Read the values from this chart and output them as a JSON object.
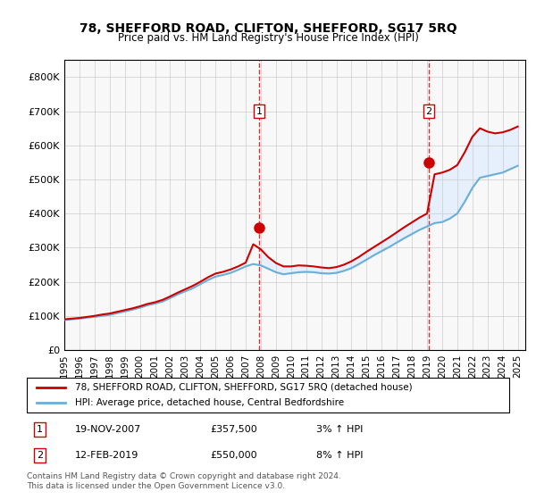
{
  "title": "78, SHEFFORD ROAD, CLIFTON, SHEFFORD, SG17 5RQ",
  "subtitle": "Price paid vs. HM Land Registry's House Price Index (HPI)",
  "ylabel": "",
  "xlabel": "",
  "ylim": [
    0,
    850000
  ],
  "yticks": [
    0,
    100000,
    200000,
    300000,
    400000,
    500000,
    600000,
    700000,
    800000
  ],
  "ytick_labels": [
    "£0",
    "£100K",
    "£200K",
    "£300K",
    "£400K",
    "£500K",
    "£600K",
    "£700K",
    "£800K"
  ],
  "xlim_start": 1995.0,
  "xlim_end": 2025.5,
  "xticks": [
    1995,
    1996,
    1997,
    1998,
    1999,
    2000,
    2001,
    2002,
    2003,
    2004,
    2005,
    2006,
    2007,
    2008,
    2009,
    2010,
    2011,
    2012,
    2013,
    2014,
    2015,
    2016,
    2017,
    2018,
    2019,
    2020,
    2021,
    2022,
    2023,
    2024,
    2025
  ],
  "hpi_color": "#6baed6",
  "price_color": "#cc0000",
  "marker_color": "#cc0000",
  "sale1_x": 2007.89,
  "sale1_y": 357500,
  "sale1_label": "1",
  "sale2_x": 2019.12,
  "sale2_y": 550000,
  "sale2_label": "2",
  "vline_color": "#cc0000",
  "bg_fill_color": "#ddeeff",
  "legend_line1": "78, SHEFFORD ROAD, CLIFTON, SHEFFORD, SG17 5RQ (detached house)",
  "legend_line2": "HPI: Average price, detached house, Central Bedfordshire",
  "table_row1": [
    "1",
    "19-NOV-2007",
    "£357,500",
    "3% ↑ HPI"
  ],
  "table_row2": [
    "2",
    "12-FEB-2019",
    "£550,000",
    "8% ↑ HPI"
  ],
  "footnote": "Contains HM Land Registry data © Crown copyright and database right 2024.\nThis data is licensed under the Open Government Licence v3.0.",
  "background_color": "#ffffff",
  "plot_bg_color": "#ffffff",
  "grid_color": "#cccccc",
  "hpi_years": [
    1995,
    1995.5,
    1996,
    1996.5,
    1997,
    1997.5,
    1998,
    1998.5,
    1999,
    1999.5,
    2000,
    2000.5,
    2001,
    2001.5,
    2002,
    2002.5,
    2003,
    2003.5,
    2004,
    2004.5,
    2005,
    2005.5,
    2006,
    2006.5,
    2007,
    2007.5,
    2008,
    2008.5,
    2009,
    2009.5,
    2010,
    2010.5,
    2011,
    2011.5,
    2012,
    2012.5,
    2013,
    2013.5,
    2014,
    2014.5,
    2015,
    2015.5,
    2016,
    2016.5,
    2017,
    2017.5,
    2018,
    2018.5,
    2019,
    2019.5,
    2020,
    2020.5,
    2021,
    2021.5,
    2022,
    2022.5,
    2023,
    2023.5,
    2024,
    2024.5,
    2025
  ],
  "hpi_values": [
    88000,
    90000,
    92000,
    95000,
    97000,
    100000,
    103000,
    108000,
    113000,
    118000,
    124000,
    131000,
    136000,
    142000,
    152000,
    163000,
    172000,
    181000,
    193000,
    205000,
    215000,
    220000,
    226000,
    235000,
    245000,
    252000,
    248000,
    238000,
    228000,
    222000,
    225000,
    228000,
    229000,
    228000,
    225000,
    224000,
    226000,
    232000,
    240000,
    252000,
    265000,
    278000,
    290000,
    302000,
    315000,
    328000,
    340000,
    352000,
    362000,
    372000,
    375000,
    385000,
    400000,
    435000,
    475000,
    505000,
    510000,
    515000,
    520000,
    530000,
    540000
  ],
  "price_years": [
    1995,
    1995.5,
    1996,
    1996.5,
    1997,
    1997.5,
    1998,
    1998.5,
    1999,
    1999.5,
    2000,
    2000.5,
    2001,
    2001.5,
    2002,
    2002.5,
    2003,
    2003.5,
    2004,
    2004.5,
    2005,
    2005.5,
    2006,
    2006.5,
    2007,
    2007.5,
    2008,
    2008.5,
    2009,
    2009.5,
    2010,
    2010.5,
    2011,
    2011.5,
    2012,
    2012.5,
    2013,
    2013.5,
    2014,
    2014.5,
    2015,
    2015.5,
    2016,
    2016.5,
    2017,
    2017.5,
    2018,
    2018.5,
    2019,
    2019.5,
    2020,
    2020.5,
    2021,
    2021.5,
    2022,
    2022.5,
    2023,
    2023.5,
    2024,
    2024.5,
    2025
  ],
  "price_values": [
    90000,
    92000,
    94000,
    97000,
    100000,
    104000,
    107000,
    112000,
    117000,
    122000,
    128000,
    135000,
    140000,
    147000,
    157000,
    168000,
    178000,
    188000,
    200000,
    213000,
    224000,
    229000,
    236000,
    245000,
    256000,
    310000,
    295000,
    272000,
    255000,
    245000,
    245000,
    248000,
    247000,
    245000,
    242000,
    240000,
    243000,
    250000,
    260000,
    273000,
    288000,
    302000,
    316000,
    330000,
    345000,
    360000,
    374000,
    388000,
    400000,
    515000,
    520000,
    528000,
    542000,
    580000,
    625000,
    650000,
    640000,
    635000,
    638000,
    645000,
    655000
  ]
}
